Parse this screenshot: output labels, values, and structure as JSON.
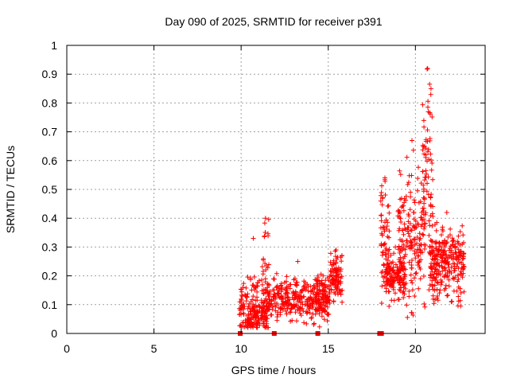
{
  "chart_data": {
    "type": "scatter",
    "title": "Day 090 of 2025, SRMTID for receiver p391",
    "xlabel": "GPS time / hours",
    "ylabel": "SRMTID / TECUs",
    "xlim": [
      0,
      24
    ],
    "ylim": [
      0,
      1
    ],
    "xticks": [
      0,
      5,
      10,
      15,
      20
    ],
    "yticks": [
      0,
      0.1,
      0.2,
      0.3,
      0.4,
      0.5,
      0.6,
      0.7,
      0.8,
      0.9,
      1
    ],
    "grid": true,
    "marker": "+",
    "series_color": "#ff0000",
    "baseline_markers_x": [
      9.95,
      11.9,
      14.4,
      17.95,
      18.05
    ],
    "clusters": [
      {
        "x_start": 9.9,
        "x_end": 11.5,
        "y_center": 0.08,
        "spread": 0.05,
        "count": 210,
        "max": 0.33
      },
      {
        "x_start": 11.2,
        "x_end": 11.6,
        "y_center": 0.22,
        "spread": 0.1,
        "count": 30,
        "max": 0.4
      },
      {
        "x_start": 11.5,
        "x_end": 15.0,
        "y_center": 0.11,
        "spread": 0.035,
        "count": 330,
        "max": 0.25
      },
      {
        "x_start": 14.3,
        "x_end": 15.1,
        "y_center": 0.14,
        "spread": 0.04,
        "count": 70,
        "max": 0.2
      },
      {
        "x_start": 15.1,
        "x_end": 15.8,
        "y_center": 0.2,
        "spread": 0.04,
        "count": 90,
        "max": 0.29
      },
      {
        "x_start": 18.0,
        "x_end": 18.5,
        "y_center": 0.3,
        "spread": 0.09,
        "count": 70,
        "max": 0.54
      },
      {
        "x_start": 18.3,
        "x_end": 19.4,
        "y_center": 0.2,
        "spread": 0.035,
        "count": 130,
        "max": 0.3
      },
      {
        "x_start": 19.0,
        "x_end": 20.6,
        "y_center": 0.33,
        "spread": 0.11,
        "count": 190,
        "max": 0.67
      },
      {
        "x_start": 20.4,
        "x_end": 21.0,
        "y_center": 0.55,
        "spread": 0.16,
        "count": 70,
        "max": 0.92
      },
      {
        "x_start": 20.8,
        "x_end": 22.8,
        "y_center": 0.24,
        "spread": 0.06,
        "count": 280,
        "max": 0.42
      }
    ]
  }
}
